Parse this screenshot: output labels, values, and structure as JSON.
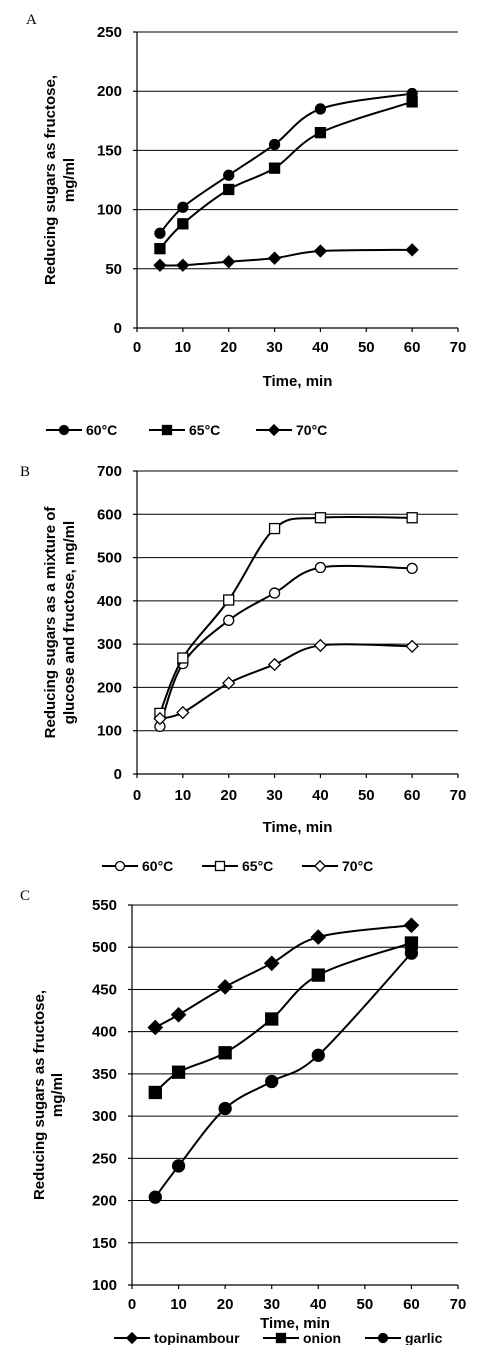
{
  "chart_data": [
    {
      "panel": "A",
      "type": "line",
      "xlabel": "Time, min",
      "ylabel_lines": [
        "Reducing sugars as fructose,",
        "mg/ml"
      ],
      "xlim": [
        0,
        70
      ],
      "ylim": [
        0,
        250
      ],
      "xticks": [
        0,
        10,
        20,
        30,
        40,
        50,
        60,
        70
      ],
      "yticks": [
        0,
        50,
        100,
        150,
        200,
        250
      ],
      "grid": "horizontal",
      "legend": "bottom",
      "series": [
        {
          "name": "60°C",
          "marker": "circle",
          "fill": "#000000",
          "x": [
            5,
            10,
            20,
            30,
            40,
            60
          ],
          "y": [
            80,
            102,
            129,
            155,
            185,
            198
          ]
        },
        {
          "name": "65°C",
          "marker": "square",
          "fill": "#000000",
          "x": [
            5,
            10,
            20,
            30,
            40,
            60
          ],
          "y": [
            67,
            88,
            117,
            135,
            165,
            191
          ]
        },
        {
          "name": "70°C",
          "marker": "diamond",
          "fill": "#000000",
          "x": [
            5,
            10,
            20,
            30,
            40,
            60
          ],
          "y": [
            53,
            53,
            56,
            59,
            65,
            66
          ]
        }
      ]
    },
    {
      "panel": "B",
      "type": "line",
      "xlabel": "Time, min",
      "ylabel_lines": [
        "Reducing sugars as a mixture of",
        "glucose and fructose, mg/ml"
      ],
      "xlim": [
        0,
        70
      ],
      "ylim": [
        0,
        700
      ],
      "xticks": [
        0,
        10,
        20,
        30,
        40,
        50,
        60,
        70
      ],
      "yticks": [
        0,
        100,
        200,
        300,
        400,
        500,
        600,
        700
      ],
      "grid": "horizontal",
      "legend": "bottom",
      "series": [
        {
          "name": "60°C",
          "marker": "circle",
          "fill": "#ffffff",
          "x": [
            5,
            10,
            20,
            30,
            40,
            60
          ],
          "y": [
            110,
            255,
            355,
            418,
            477,
            475
          ]
        },
        {
          "name": "65°C",
          "marker": "square",
          "fill": "#ffffff",
          "x": [
            5,
            10,
            20,
            30,
            40,
            60
          ],
          "y": [
            140,
            268,
            402,
            567,
            592,
            592
          ]
        },
        {
          "name": "70°C",
          "marker": "diamond",
          "fill": "#ffffff",
          "x": [
            5,
            10,
            20,
            30,
            40,
            60
          ],
          "y": [
            128,
            142,
            210,
            253,
            297,
            295
          ]
        }
      ]
    },
    {
      "panel": "C",
      "type": "line",
      "xlabel": "Time, min",
      "ylabel_lines": [
        "Reducing sugars as fructose,",
        "mg/ml"
      ],
      "xlim": [
        0,
        70
      ],
      "ylim": [
        100,
        550
      ],
      "xticks": [
        0,
        10,
        20,
        30,
        40,
        50,
        60,
        70
      ],
      "yticks": [
        100,
        150,
        200,
        250,
        300,
        350,
        400,
        450,
        500,
        550
      ],
      "grid": "horizontal",
      "legend": "bottom",
      "series": [
        {
          "name": "topinambour",
          "marker": "diamond",
          "fill": "#000000",
          "x": [
            5,
            10,
            20,
            30,
            40,
            60
          ],
          "y": [
            405,
            420,
            453,
            481,
            512,
            526
          ]
        },
        {
          "name": "onion",
          "marker": "square",
          "fill": "#000000",
          "x": [
            5,
            10,
            20,
            30,
            40,
            60
          ],
          "y": [
            328,
            352,
            375,
            415,
            467,
            505
          ]
        },
        {
          "name": "garlic",
          "marker": "circle",
          "fill": "#000000",
          "x": [
            5,
            10,
            20,
            30,
            40,
            60
          ],
          "y": [
            204,
            241,
            309,
            341,
            372,
            493
          ]
        }
      ]
    }
  ]
}
